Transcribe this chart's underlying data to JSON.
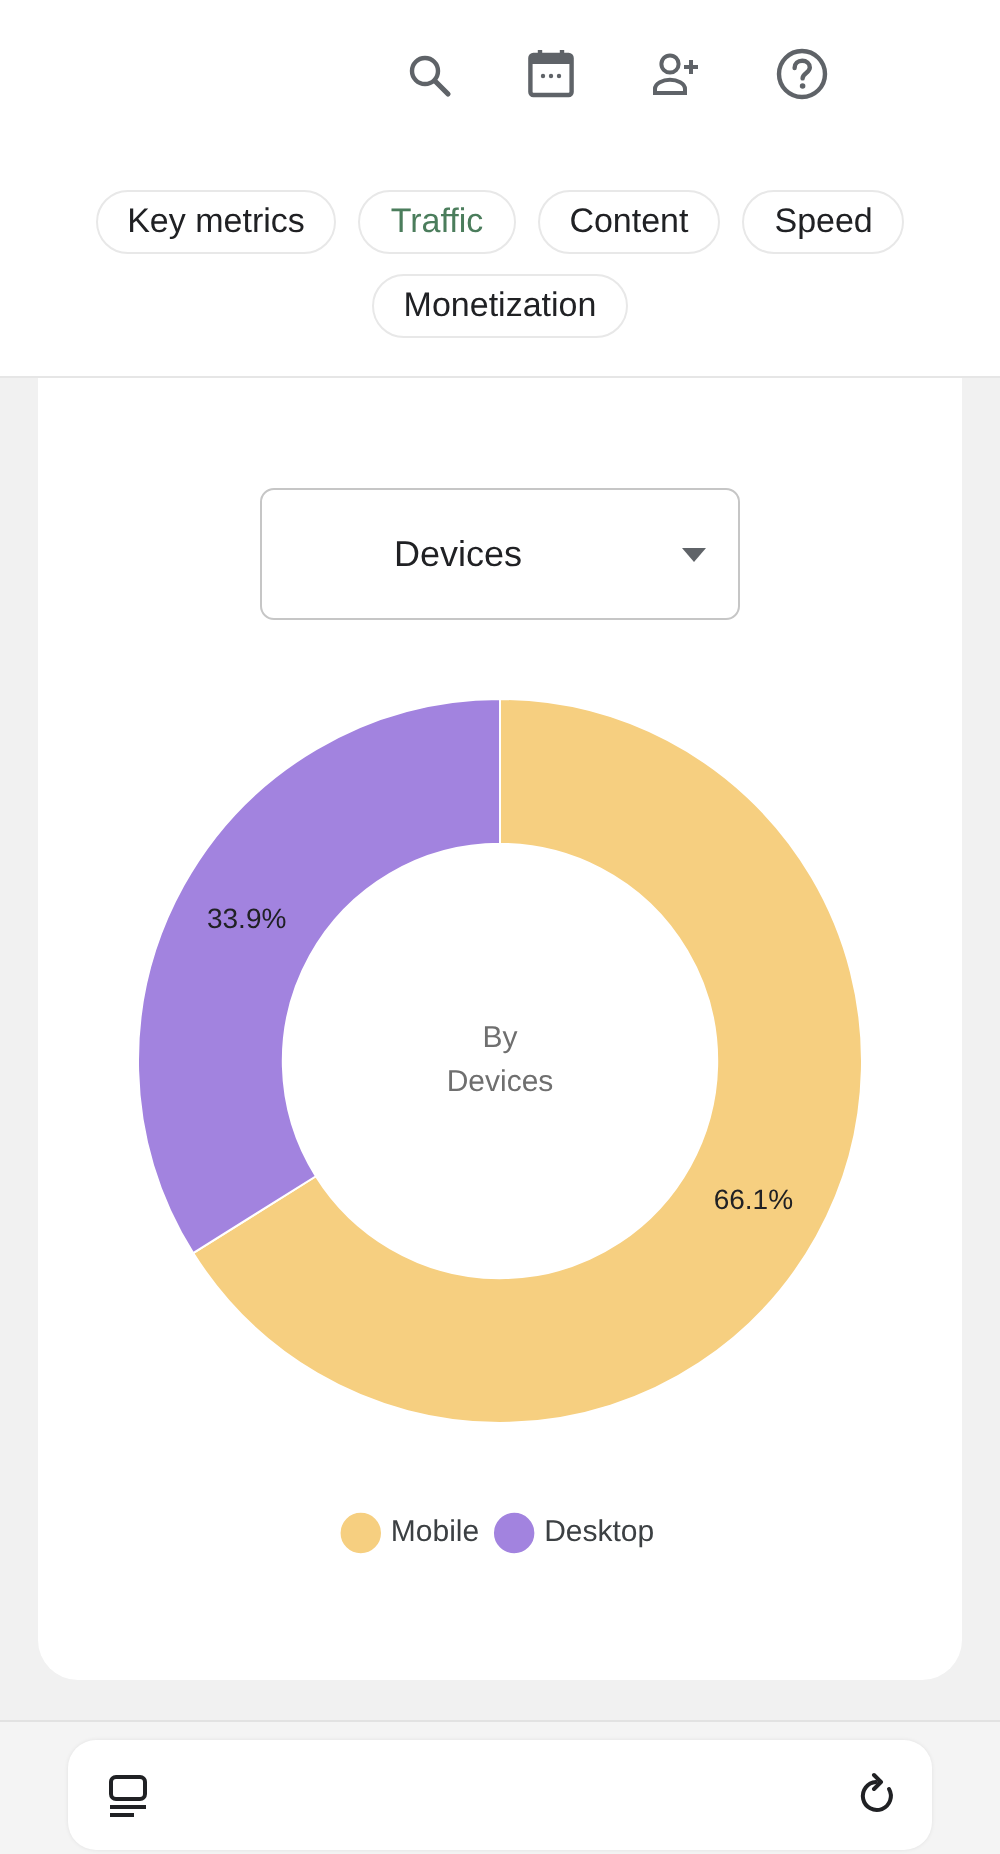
{
  "chart_data": {
    "type": "donut",
    "title": "Devices",
    "categories": [
      "Mobile",
      "Desktop"
    ],
    "values": [
      66.1,
      33.9
    ],
    "colors": [
      "#f6cf80",
      "#a283df"
    ],
    "value_labels": [
      "66.1%",
      "33.9%"
    ],
    "legend": "bottom",
    "annotations": [
      "Key metrics",
      "Traffic",
      "Content",
      "Speed",
      "Monetization",
      "By\nDevices"
    ]
  }
}
